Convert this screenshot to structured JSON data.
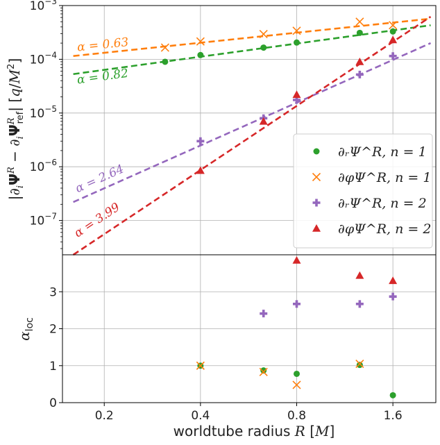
{
  "chart_data": [
    {
      "type": "scatter",
      "panel": "top",
      "xscale": "log2",
      "yscale": "log",
      "xlim": [
        0.148,
        2.18
      ],
      "ylim": [
        2.3e-08,
        0.001
      ],
      "grid": true,
      "ylabel": "|∂ᵢΨ^R − ∂ᵢΨ^R_ref| [q/M²]",
      "yticks": [
        {
          "value": 1e-07,
          "base": "10",
          "exp": "−7"
        },
        {
          "value": 1e-06,
          "base": "10",
          "exp": "−6"
        },
        {
          "value": 1e-05,
          "base": "10",
          "exp": "−5"
        },
        {
          "value": 0.0001,
          "base": "10",
          "exp": "−4"
        },
        {
          "value": 0.001,
          "base": "10",
          "exp": "−3"
        }
      ],
      "legend": {
        "placement": "lower right",
        "entries": [
          {
            "series": "dr_n1",
            "text": "∂ᵣΨ^R,  n = 1"
          },
          {
            "series": "dphi_n1",
            "text": "∂φΨ^R,  n = 1"
          },
          {
            "series": "dr_n2",
            "text": "∂ᵣΨ^R,  n = 2"
          },
          {
            "series": "dphi_n2",
            "text": "∂φΨ^R,  n = 2"
          }
        ]
      },
      "series": [
        {
          "id": "dr_n1",
          "label": "∂ᵣΨ^R, n=1",
          "color": "#2ca02c",
          "marker": "circle",
          "x": [
            0.31,
            0.4,
            0.63,
            0.8,
            1.26,
            1.6
          ],
          "y": [
            9e-05,
            0.00012,
            0.000165,
            0.000205,
            0.00031,
            0.00033
          ]
        },
        {
          "id": "dphi_n1",
          "label": "∂φΨ^R, n=1",
          "color": "#ff7f0e",
          "marker": "x",
          "x": [
            0.31,
            0.4,
            0.63,
            0.8,
            1.26,
            1.6
          ],
          "y": [
            0.000165,
            0.000215,
            0.000295,
            0.00034,
            0.0005,
            0.00043
          ]
        },
        {
          "id": "dr_n2",
          "label": "∂ᵣΨ^R, n=2",
          "color": "#9467bd",
          "marker": "plus",
          "x": [
            0.4,
            0.63,
            0.8,
            1.26,
            1.6
          ],
          "y": [
            3e-06,
            8e-06,
            1.75e-05,
            5.2e-05,
            0.000115
          ]
        },
        {
          "id": "dphi_n2",
          "label": "∂φΨ^R, n=2",
          "color": "#d62728",
          "marker": "triangle",
          "x": [
            0.4,
            0.63,
            0.8,
            1.26,
            1.6
          ],
          "y": [
            8.5e-07,
            7e-06,
            2.2e-05,
            9e-05,
            0.00023
          ]
        }
      ],
      "fits": [
        {
          "series": "dphi_n1",
          "alpha": "0.63",
          "label": "α = 0.63",
          "x": [
            0.16,
            2.1
          ],
          "y": [
            0.000115,
            0.00057
          ],
          "color": "#ff7f0e"
        },
        {
          "series": "dr_n1",
          "alpha": "0.82",
          "label": "α = 0.82",
          "x": [
            0.16,
            2.1
          ],
          "y": [
            5.3e-05,
            0.00043
          ],
          "color": "#2ca02c"
        },
        {
          "series": "dr_n2",
          "alpha": "2.64",
          "label": "α = 2.64",
          "x": [
            0.16,
            2.1
          ],
          "y": [
            2.2e-07,
            0.0002
          ],
          "color": "#9467bd"
        },
        {
          "series": "dphi_n2",
          "alpha": "3.99",
          "label": "α = 3.99",
          "x": [
            0.16,
            2.1
          ],
          "y": [
            2.3e-08,
            0.00062
          ],
          "color": "#d62728"
        }
      ]
    },
    {
      "type": "scatter",
      "panel": "bottom",
      "xscale": "log2",
      "xlim": [
        0.148,
        2.18
      ],
      "ylim": [
        0,
        4.0
      ],
      "grid": true,
      "ylabel": "α_loc",
      "xlabel": "worldtube radius R [M]",
      "xticks": [
        {
          "value": 0.2,
          "label": "0.2"
        },
        {
          "value": 0.4,
          "label": "0.4"
        },
        {
          "value": 0.8,
          "label": "0.8"
        },
        {
          "value": 1.6,
          "label": "1.6"
        }
      ],
      "yticks": [
        {
          "value": 0,
          "label": "0"
        },
        {
          "value": 1,
          "label": "1"
        },
        {
          "value": 2,
          "label": "2"
        },
        {
          "value": 3,
          "label": "3"
        }
      ],
      "series": [
        {
          "id": "dr_n1",
          "color": "#2ca02c",
          "marker": "circle",
          "x": [
            0.4,
            0.63,
            0.8,
            1.26,
            1.6
          ],
          "y": [
            1.0,
            0.87,
            0.78,
            1.02,
            0.2
          ]
        },
        {
          "id": "dphi_n1",
          "color": "#ff7f0e",
          "marker": "x",
          "x": [
            0.4,
            0.63,
            0.8,
            1.26
          ],
          "y": [
            1.0,
            0.83,
            0.48,
            1.05
          ]
        },
        {
          "id": "dr_n2",
          "color": "#9467bd",
          "marker": "plus",
          "x": [
            0.63,
            0.8,
            1.26,
            1.6
          ],
          "y": [
            2.41,
            2.67,
            2.67,
            2.87
          ]
        },
        {
          "id": "dphi_n2",
          "color": "#d62728",
          "marker": "triangle",
          "x": [
            0.8,
            1.26,
            1.6
          ],
          "y": [
            3.85,
            3.44,
            3.3
          ]
        }
      ]
    }
  ]
}
